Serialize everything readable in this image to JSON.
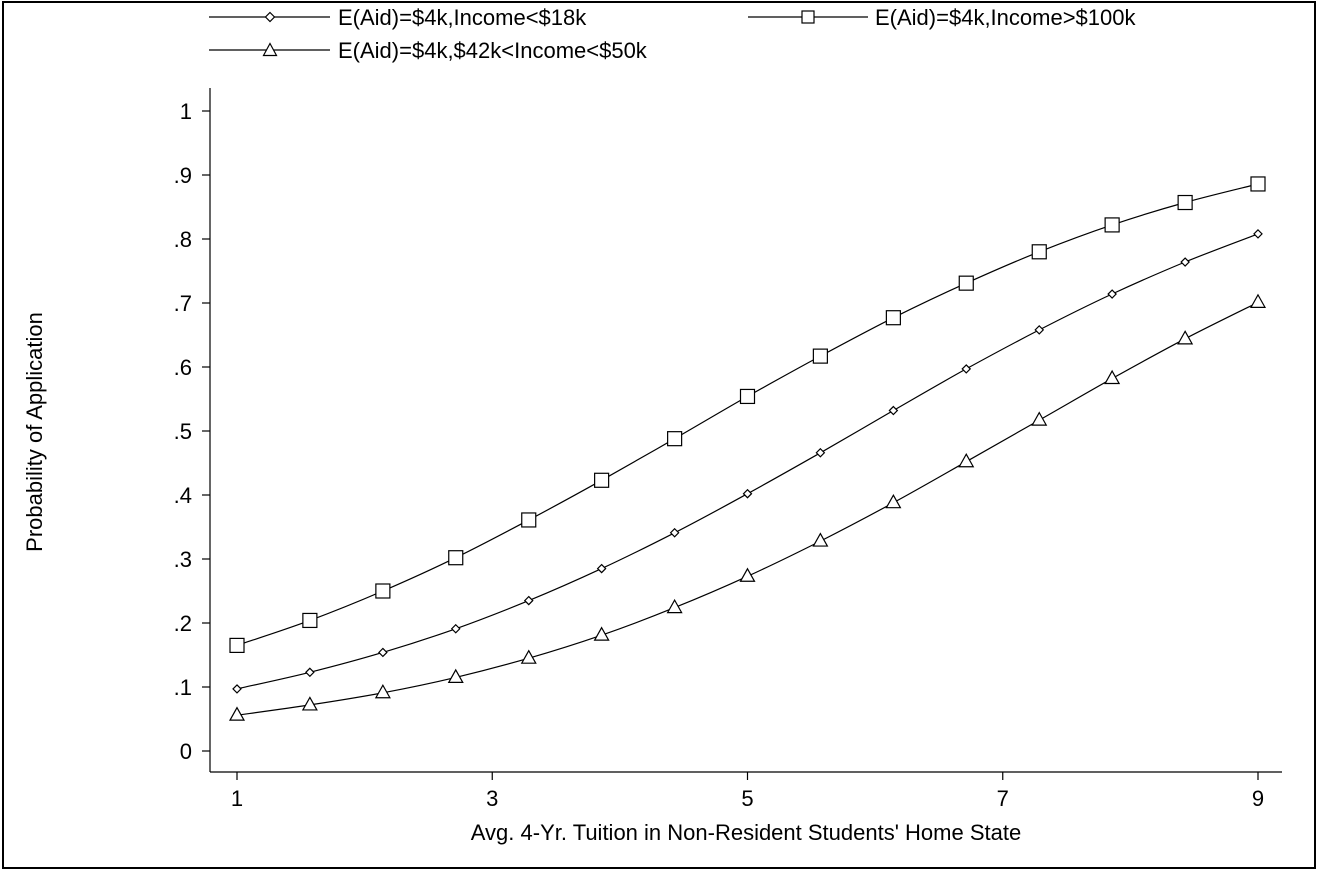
{
  "chart_data": {
    "type": "line",
    "title": "",
    "xlabel": "Avg. 4-Yr. Tuition in Non-Resident Students' Home State",
    "ylabel": "Probability of Application",
    "xlim": [
      0.9,
      9.1
    ],
    "ylim": [
      0,
      1
    ],
    "x_ticks": [
      1,
      3,
      5,
      7,
      9
    ],
    "x_tick_labels": [
      "1",
      "3",
      "5",
      "7",
      "9"
    ],
    "y_ticks": [
      0,
      0.1,
      0.2,
      0.3,
      0.4,
      0.5,
      0.6,
      0.7,
      0.8,
      0.9,
      1
    ],
    "y_tick_labels": [
      "0",
      ".1",
      ".2",
      ".3",
      ".4",
      ".5",
      ".6",
      ".7",
      ".8",
      ".9",
      "1"
    ],
    "grid": false,
    "legend_position": "top",
    "x": [
      1,
      1.571,
      2.143,
      2.714,
      3.286,
      3.857,
      4.429,
      5,
      5.571,
      6.143,
      6.714,
      7.286,
      7.857,
      8.429,
      9
    ],
    "series": [
      {
        "name": "E(Aid)=$4k,Income<$18k",
        "marker": "diamond",
        "values": [
          0.097,
          0.123,
          0.154,
          0.191,
          0.235,
          0.285,
          0.341,
          0.402,
          0.466,
          0.532,
          0.597,
          0.658,
          0.714,
          0.764,
          0.808
        ]
      },
      {
        "name": "E(Aid)=$4k,Income>$100k",
        "marker": "square",
        "values": [
          0.165,
          0.204,
          0.25,
          0.302,
          0.361,
          0.423,
          0.488,
          0.554,
          0.617,
          0.677,
          0.731,
          0.78,
          0.822,
          0.857,
          0.886
        ]
      },
      {
        "name": "E(Aid)=$4k,$42k<Income<$50k",
        "marker": "triangle",
        "values": [
          0.056,
          0.072,
          0.091,
          0.115,
          0.145,
          0.181,
          0.224,
          0.273,
          0.328,
          0.388,
          0.452,
          0.517,
          0.582,
          0.644,
          0.701
        ]
      }
    ]
  }
}
